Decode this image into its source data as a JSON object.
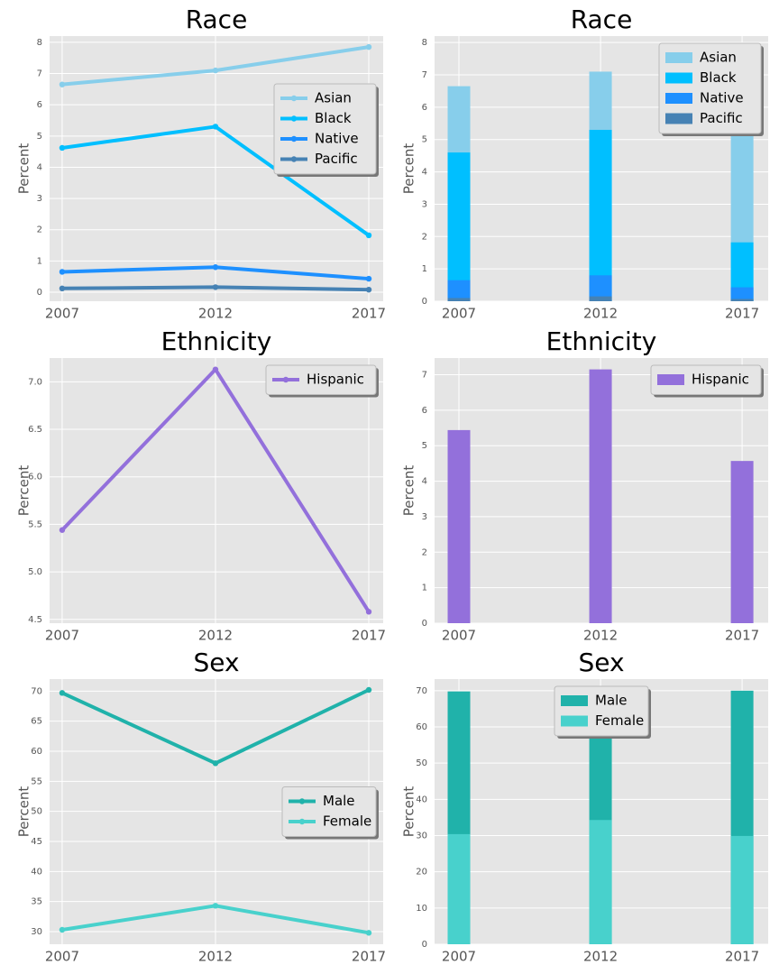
{
  "chart_data": [
    {
      "type": "line",
      "title": "Race",
      "ylabel": "Percent",
      "x": [
        2007,
        2012,
        2017
      ],
      "xlim": [
        2006.59,
        2017.47
      ],
      "xticks": [
        2007,
        2012,
        2017
      ],
      "ylim": [
        -0.29,
        8.2
      ],
      "yticks": [
        0,
        1,
        2,
        3,
        4,
        5,
        6,
        7,
        8
      ],
      "grid": true,
      "legend": "center right",
      "series": [
        {
          "name": "Asian",
          "color": "#87ceeb",
          "values": [
            6.65,
            7.1,
            7.85
          ]
        },
        {
          "name": "Black",
          "color": "#00bfff",
          "values": [
            4.62,
            5.3,
            1.82
          ]
        },
        {
          "name": "Native",
          "color": "#1e90ff",
          "values": [
            0.65,
            0.8,
            0.43
          ]
        },
        {
          "name": "Pacific",
          "color": "#4682b4",
          "values": [
            0.12,
            0.16,
            0.08
          ]
        }
      ]
    },
    {
      "type": "bar",
      "title": "Race",
      "ylabel": "Percent",
      "x": [
        2007,
        2012,
        2017
      ],
      "xlim": [
        2006.14,
        2017.92
      ],
      "xticks": [
        2007,
        2012,
        2017
      ],
      "ylim": [
        0,
        8.2
      ],
      "yticks": [
        0,
        1,
        2,
        3,
        4,
        5,
        6,
        7,
        8
      ],
      "grid": true,
      "legend": "upper right",
      "series": [
        {
          "name": "Asian",
          "color": "#87ceeb",
          "values": [
            6.65,
            7.1,
            7.85
          ]
        },
        {
          "name": "Black",
          "color": "#00bfff",
          "values": [
            4.6,
            5.3,
            1.82
          ]
        },
        {
          "name": "Native",
          "color": "#1e90ff",
          "values": [
            0.65,
            0.8,
            0.43
          ]
        },
        {
          "name": "Pacific",
          "color": "#4682b4",
          "values": [
            0.1,
            0.15,
            0.07
          ]
        }
      ]
    },
    {
      "type": "line",
      "title": "Ethnicity",
      "ylabel": "Percent",
      "x": [
        2007,
        2012,
        2017
      ],
      "xlim": [
        2006.59,
        2017.47
      ],
      "xticks": [
        2007,
        2012,
        2017
      ],
      "ylim": [
        4.46,
        7.25
      ],
      "yticks": [
        4.5,
        {
          "value": 5,
          "label": "5.0"
        },
        5.5,
        {
          "value": 6,
          "label": "6.0"
        },
        6.5,
        {
          "value": 7,
          "label": "7.0"
        }
      ],
      "grid": true,
      "legend": "upper right",
      "series": [
        {
          "name": "Hispanic",
          "color": "#9370db",
          "values": [
            5.44,
            7.13,
            4.58
          ]
        }
      ]
    },
    {
      "type": "bar",
      "title": "Ethnicity",
      "ylabel": "Percent",
      "x": [
        2007,
        2012,
        2017
      ],
      "xlim": [
        2006.14,
        2017.92
      ],
      "xticks": [
        2007,
        2012,
        2017
      ],
      "ylim": [
        0,
        7.47
      ],
      "yticks": [
        0,
        1,
        2,
        3,
        4,
        5,
        6,
        7
      ],
      "grid": true,
      "legend": "upper right",
      "series": [
        {
          "name": "Hispanic",
          "color": "#9370db",
          "values": [
            5.44,
            7.15,
            4.57
          ]
        }
      ]
    },
    {
      "type": "line",
      "title": "Sex",
      "ylabel": "Percent",
      "x": [
        2007,
        2012,
        2017
      ],
      "xlim": [
        2006.59,
        2017.47
      ],
      "xticks": [
        2007,
        2012,
        2017
      ],
      "ylim": [
        27.9,
        72
      ],
      "yticks": [
        30,
        35,
        40,
        45,
        50,
        55,
        60,
        65,
        70
      ],
      "grid": true,
      "legend": "center right",
      "series": [
        {
          "name": "Male",
          "color": "#20b2aa",
          "values": [
            69.7,
            58.0,
            70.2
          ]
        },
        {
          "name": "Female",
          "color": "#48d1cc",
          "values": [
            30.3,
            34.3,
            29.8
          ]
        }
      ]
    },
    {
      "type": "bar",
      "title": "Sex",
      "ylabel": "Percent",
      "x": [
        2007,
        2012,
        2017
      ],
      "xlim": [
        2006.14,
        2017.92
      ],
      "xticks": [
        2007,
        2012,
        2017
      ],
      "ylim": [
        0,
        73.2
      ],
      "yticks": [
        0,
        10,
        20,
        30,
        40,
        50,
        60,
        70
      ],
      "grid": true,
      "legend": "upper center",
      "series": [
        {
          "name": "Male",
          "color": "#20b2aa",
          "values": [
            69.8,
            58.0,
            70.0
          ]
        },
        {
          "name": "Female",
          "color": "#48d1cc",
          "values": [
            30.4,
            34.3,
            29.9
          ]
        }
      ]
    }
  ]
}
